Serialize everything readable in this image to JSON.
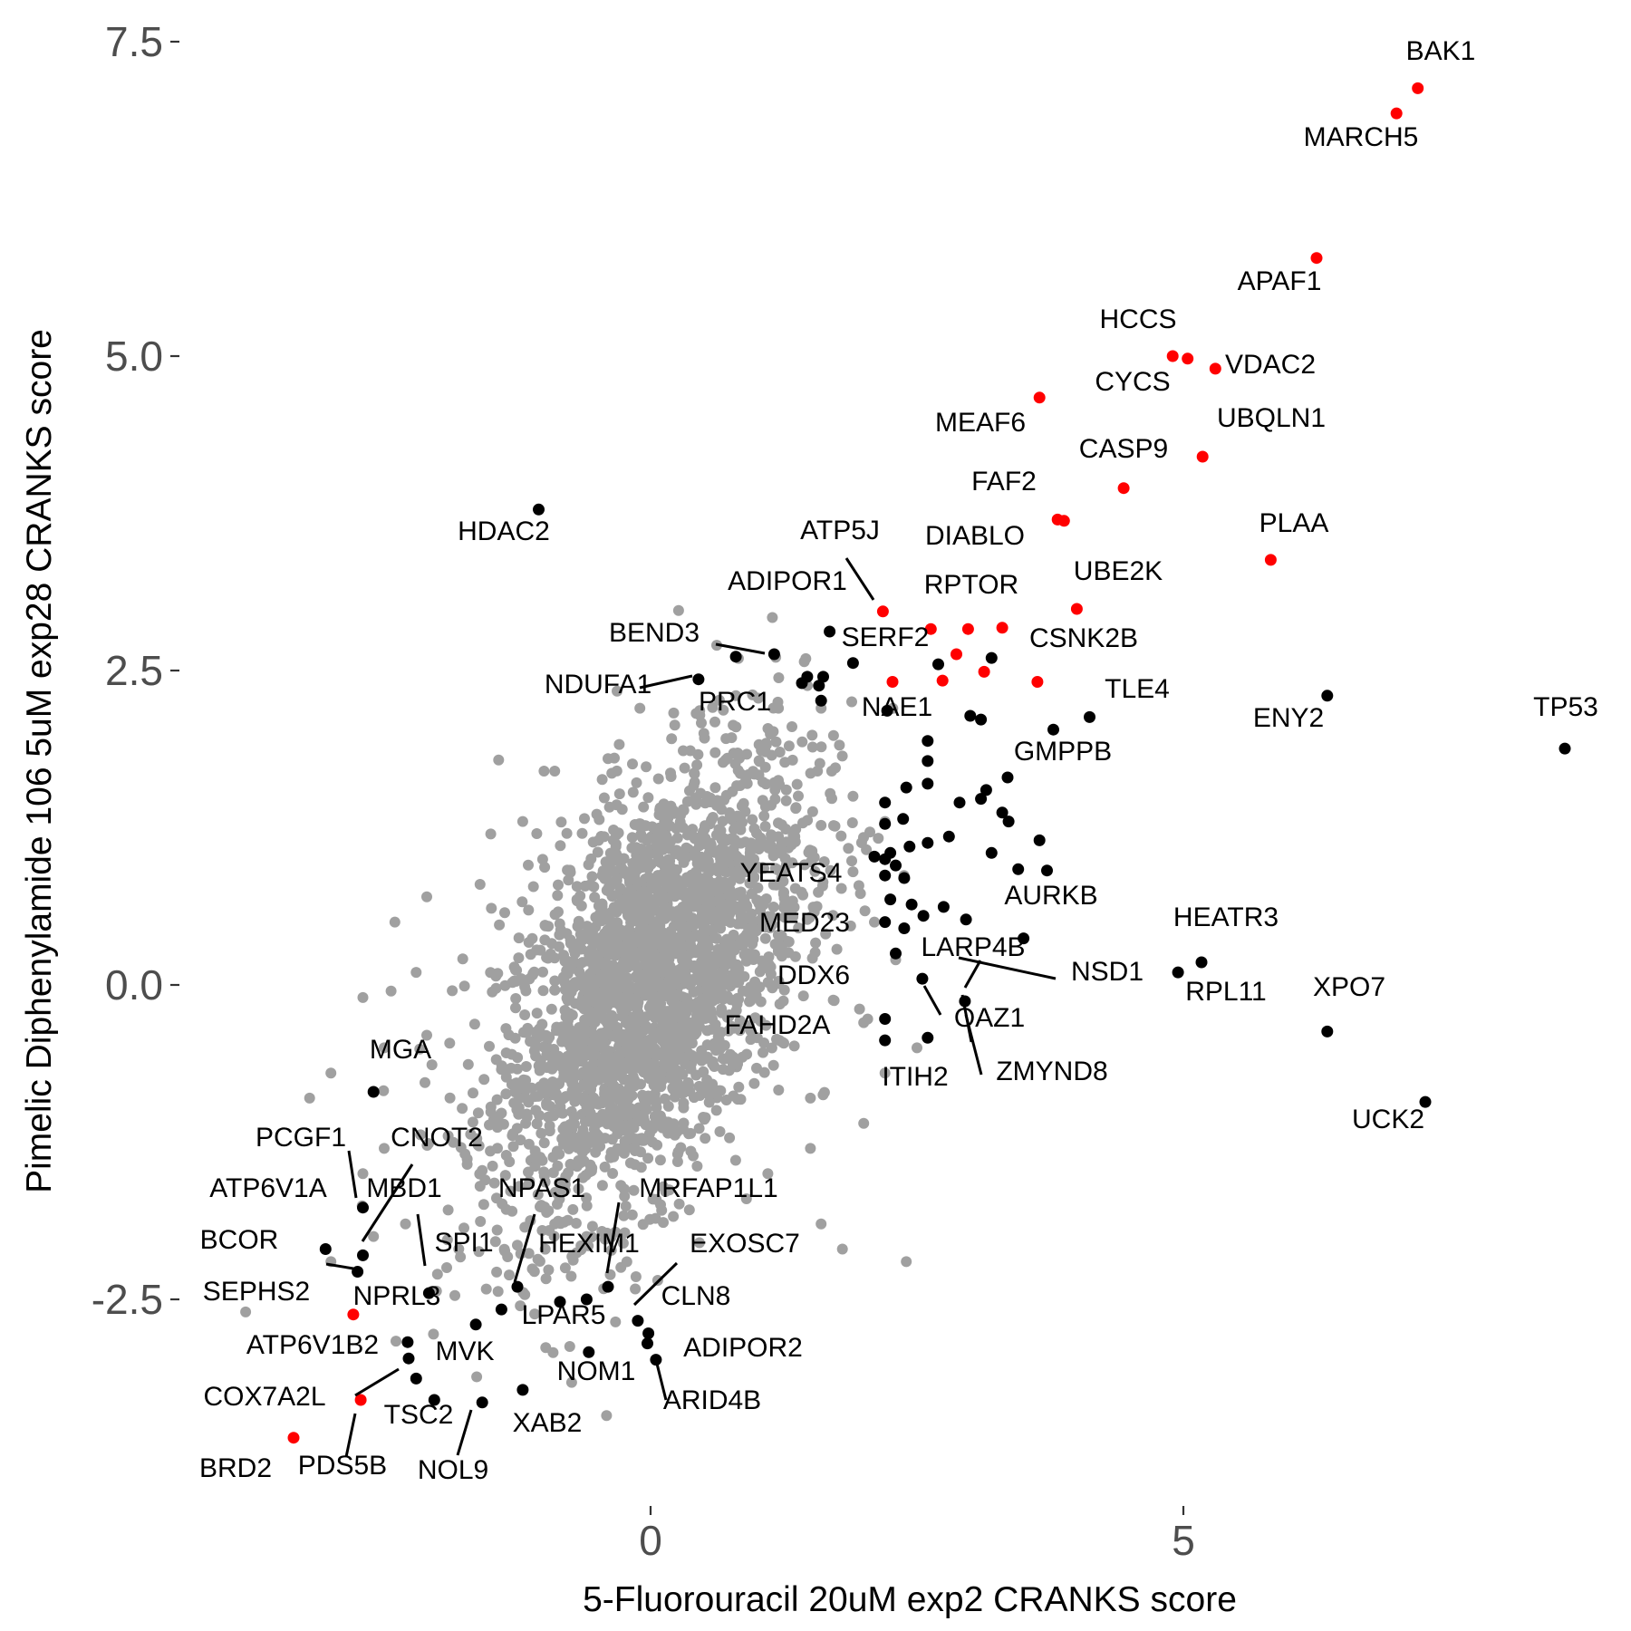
{
  "chart_data": {
    "type": "scatter",
    "title": "",
    "xlabel": "5-Fluorouracil 20uM exp2 CRANKS score",
    "ylabel": "Pimelic Diphenylamide 106 5uM exp28 CRANKS score",
    "xlim": [
      -4.2,
      8.9
    ],
    "ylim": [
      -4.1,
      7.7
    ],
    "grid": false,
    "legend": "none",
    "colors": {
      "background_genes": "#a0a0a0",
      "highlight": "#000000",
      "hit": "#ff0000"
    },
    "x_ticks": [
      {
        "value": 0,
        "label": "0"
      },
      {
        "value": 5,
        "label": "5"
      }
    ],
    "y_ticks": [
      {
        "value": -2.5,
        "label": "-2.5"
      },
      {
        "value": 0,
        "label": "0.0"
      },
      {
        "value": 2.5,
        "label": "2.5"
      },
      {
        "value": 5,
        "label": "5.0"
      },
      {
        "value": 7.5,
        "label": "7.5"
      }
    ],
    "background_cloud": {
      "description": "thousands of unlabeled genes, gray, concentrated around (0,0)",
      "extra_points": [
        [
          -3.0,
          -0.7
        ],
        [
          -2.7,
          -0.1
        ],
        [
          -2.7,
          -1.5
        ],
        [
          -2.3,
          -1.9
        ],
        [
          -2.1,
          0.7
        ],
        [
          -2.0,
          -2.3
        ],
        [
          -3.8,
          -2.6
        ],
        [
          -3.0,
          -2.2
        ],
        [
          -2.5,
          -1.3
        ],
        [
          -1.8,
          -2.1
        ],
        [
          2.4,
          -2.2
        ],
        [
          1.8,
          -2.1
        ],
        [
          2.0,
          -1.1
        ],
        [
          1.5,
          -1.3
        ],
        [
          1.7,
          1.7
        ],
        [
          1.6,
          2.2
        ],
        [
          1.2,
          2.2
        ],
        [
          0.8,
          2.3
        ],
        [
          -0.1,
          2.2
        ],
        [
          -0.4,
          1.8
        ],
        [
          -0.9,
          1.7
        ],
        [
          -1.0,
          1.7
        ],
        [
          -1.5,
          1.2
        ],
        [
          -1.6,
          0.8
        ],
        [
          1.9,
          1.5
        ],
        [
          2.2,
          1.3
        ],
        [
          2.1,
          0.5
        ],
        [
          2.0,
          -0.3
        ],
        [
          1.5,
          -0.9
        ],
        [
          -1.3,
          -1.8
        ],
        [
          -2.5,
          -0.5
        ],
        [
          -2.2,
          0.1
        ],
        [
          1.3,
          1.9
        ],
        [
          0.5,
          2.0
        ],
        [
          -0.6,
          -2.0
        ],
        [
          -0.9,
          -1.9
        ],
        [
          -1.6,
          -1.6
        ],
        [
          -2.4,
          0.5
        ],
        [
          -1.9,
          -1.2
        ],
        [
          1.9,
          0.9
        ],
        [
          0.9,
          -1.7
        ],
        [
          1.1,
          -1.5
        ],
        [
          -1.2,
          1.3
        ],
        [
          2.3,
          0.2
        ],
        [
          2.5,
          -0.5
        ],
        [
          2.2,
          -0.7
        ],
        [
          1.6,
          -1.9
        ],
        [
          -2.6,
          -2.0
        ],
        [
          -3.2,
          -0.9
        ],
        [
          -2.1,
          -0.4
        ]
      ]
    },
    "series": [
      {
        "name": "",
        "color": "#ff0000",
        "points": [
          {
            "label": "BAK1",
            "x": 7.2,
            "y": 7.13
          },
          {
            "label": "MARCH5",
            "x": 7.0,
            "y": 6.93
          },
          {
            "label": "APAF1",
            "x": 6.25,
            "y": 5.78
          },
          {
            "label": "HCCS",
            "x": 4.9,
            "y": 5.0
          },
          {
            "label": "CYCS",
            "x": 5.04,
            "y": 4.98
          },
          {
            "label": "VDAC2",
            "x": 5.3,
            "y": 4.9
          },
          {
            "label": "MEAF6",
            "x": 3.65,
            "y": 4.67
          },
          {
            "label": "UBQLN1",
            "x": 5.18,
            "y": 4.2
          },
          {
            "label": "CASP9",
            "x": 4.44,
            "y": 3.95
          },
          {
            "label": "FAF2",
            "x": 3.82,
            "y": 3.7
          },
          {
            "label": "DIABLO",
            "x": 3.88,
            "y": 3.69
          },
          {
            "label": "PLAA",
            "x": 5.82,
            "y": 3.38
          },
          {
            "label": "ADIPOR1",
            "x": 2.18,
            "y": 2.97
          },
          {
            "label": "UBE2K",
            "x": 4.0,
            "y": 2.99
          },
          {
            "label": "RPTOR",
            "x": 2.63,
            "y": 2.83
          },
          {
            "label": "",
            "x": 2.98,
            "y": 2.83
          },
          {
            "label": "",
            "x": 3.3,
            "y": 2.84
          },
          {
            "label": "",
            "x": 2.87,
            "y": 2.63
          },
          {
            "label": "CSNK2B",
            "x": 3.13,
            "y": 2.49
          },
          {
            "label": "",
            "x": 2.74,
            "y": 2.42
          },
          {
            "label": "",
            "x": 3.63,
            "y": 2.41
          },
          {
            "label": "",
            "x": 2.27,
            "y": 2.41
          },
          {
            "label": "NPRL3",
            "x": -2.79,
            "y": -2.62
          },
          {
            "label": "COX7A2L",
            "x": -2.72,
            "y": -3.3
          },
          {
            "label": "BRD2",
            "x": -3.35,
            "y": -3.6
          }
        ]
      },
      {
        "name": "",
        "color": "#000000",
        "points": [
          {
            "label": "HDAC2",
            "x": -1.05,
            "y": 3.78
          },
          {
            "label": "TP53",
            "x": 8.58,
            "y": 1.88
          },
          {
            "label": "ENY2",
            "x": 6.35,
            "y": 2.3
          },
          {
            "label": "TLE4",
            "x": 4.12,
            "y": 2.13
          },
          {
            "label": "GMPPB",
            "x": 3.78,
            "y": 2.03
          },
          {
            "label": "",
            "x": 3.1,
            "y": 2.11
          },
          {
            "label": "",
            "x": 3.0,
            "y": 2.14
          },
          {
            "label": "",
            "x": 3.2,
            "y": 2.6
          },
          {
            "label": "",
            "x": 2.7,
            "y": 2.55
          },
          {
            "label": "SERF2",
            "x": 1.68,
            "y": 2.81
          },
          {
            "label": "",
            "x": 1.9,
            "y": 2.56
          },
          {
            "label": "BEND3",
            "x": 1.16,
            "y": 2.63
          },
          {
            "label": "",
            "x": 0.8,
            "y": 2.61
          },
          {
            "label": "NDUFA1",
            "x": 0.45,
            "y": 2.43
          },
          {
            "label": "PRC1",
            "x": 1.47,
            "y": 2.45
          },
          {
            "label": "",
            "x": 1.62,
            "y": 2.45
          },
          {
            "label": "",
            "x": 1.42,
            "y": 2.4
          },
          {
            "label": "",
            "x": 1.58,
            "y": 2.38
          },
          {
            "label": "",
            "x": 1.6,
            "y": 2.26
          },
          {
            "label": "NAE1",
            "x": 2.22,
            "y": 2.18
          },
          {
            "label": "",
            "x": 2.6,
            "y": 1.94
          },
          {
            "label": "",
            "x": 2.6,
            "y": 1.78
          },
          {
            "label": "",
            "x": 2.6,
            "y": 1.6
          },
          {
            "label": "",
            "x": 3.35,
            "y": 1.65
          },
          {
            "label": "",
            "x": 3.15,
            "y": 1.55
          },
          {
            "label": "",
            "x": 2.4,
            "y": 1.57
          },
          {
            "label": "",
            "x": 3.1,
            "y": 1.48
          },
          {
            "label": "",
            "x": 2.9,
            "y": 1.45
          },
          {
            "label": "",
            "x": 2.2,
            "y": 1.45
          },
          {
            "label": "",
            "x": 3.3,
            "y": 1.37
          },
          {
            "label": "",
            "x": 3.36,
            "y": 1.3
          },
          {
            "label": "",
            "x": 2.37,
            "y": 1.32
          },
          {
            "label": "",
            "x": 2.2,
            "y": 1.28
          },
          {
            "label": "",
            "x": 2.8,
            "y": 1.18
          },
          {
            "label": "",
            "x": 3.65,
            "y": 1.15
          },
          {
            "label": "",
            "x": 2.6,
            "y": 1.13
          },
          {
            "label": "",
            "x": 2.43,
            "y": 1.1
          },
          {
            "label": "",
            "x": 2.25,
            "y": 1.05
          },
          {
            "label": "",
            "x": 3.2,
            "y": 1.05
          },
          {
            "label": "",
            "x": 2.1,
            "y": 1.02
          },
          {
            "label": "YEATS4",
            "x": 2.2,
            "y": 1.0
          },
          {
            "label": "",
            "x": 2.3,
            "y": 0.95
          },
          {
            "label": "",
            "x": 3.45,
            "y": 0.92
          },
          {
            "label": "",
            "x": 3.72,
            "y": 0.91
          },
          {
            "label": "",
            "x": 2.2,
            "y": 0.87
          },
          {
            "label": "",
            "x": 2.38,
            "y": 0.85
          },
          {
            "label": "",
            "x": 2.25,
            "y": 0.68
          },
          {
            "label": "",
            "x": 2.45,
            "y": 0.64
          },
          {
            "label": "",
            "x": 2.75,
            "y": 0.62
          },
          {
            "label": "MED23",
            "x": 2.2,
            "y": 0.5
          },
          {
            "label": "",
            "x": 2.38,
            "y": 0.45
          },
          {
            "label": "",
            "x": 2.56,
            "y": 0.55
          },
          {
            "label": "NSD1",
            "x": 2.96,
            "y": 0.52
          },
          {
            "label": "AURKB",
            "x": 3.5,
            "y": 0.37
          },
          {
            "label": "LARP4B",
            "x": 2.3,
            "y": 0.25
          },
          {
            "label": "HEATR3",
            "x": 5.17,
            "y": 0.18
          },
          {
            "label": "RPL11",
            "x": 4.95,
            "y": 0.1
          },
          {
            "label": "DDX6",
            "x": 2.55,
            "y": 0.05
          },
          {
            "label": "OAZ1",
            "x": 2.95,
            "y": -0.13
          },
          {
            "label": "XPO7",
            "x": 6.35,
            "y": -0.37
          },
          {
            "label": "",
            "x": 2.2,
            "y": -0.27
          },
          {
            "label": "FAHD2A",
            "x": 2.2,
            "y": -0.44
          },
          {
            "label": "ITIH2",
            "x": 2.6,
            "y": -0.42
          },
          {
            "label": "UCK2",
            "x": 7.27,
            "y": -0.93
          },
          {
            "label": "MGA",
            "x": -2.6,
            "y": -0.85
          },
          {
            "label": "PCGF1",
            "x": -2.7,
            "y": -1.77
          },
          {
            "label": "ATP6V1A",
            "x": -3.05,
            "y": -2.1
          },
          {
            "label": "CNOT2",
            "x": -2.7,
            "y": -2.15
          },
          {
            "label": "BCOR",
            "x": -2.75,
            "y": -2.28
          },
          {
            "label": "MBD1",
            "x": -2.08,
            "y": -2.45
          },
          {
            "label": "NPAS1",
            "x": -1.25,
            "y": -2.4
          },
          {
            "label": "",
            "x": -1.4,
            "y": -2.58
          },
          {
            "label": "",
            "x": -1.64,
            "y": -2.7
          },
          {
            "label": "",
            "x": -0.85,
            "y": -2.52
          },
          {
            "label": "",
            "x": -0.6,
            "y": -2.5
          },
          {
            "label": "HEXIM1",
            "x": -0.4,
            "y": -2.4
          },
          {
            "label": "EXOSC7",
            "x": -0.12,
            "y": -2.67
          },
          {
            "label": "LPAR5",
            "x": -0.58,
            "y": -2.92
          },
          {
            "label": "CLN8",
            "x": -0.02,
            "y": -2.77
          },
          {
            "label": "",
            "x": -0.03,
            "y": -2.85
          },
          {
            "label": "ADIPOR2",
            "x": 0.05,
            "y": -2.98
          },
          {
            "label": "ATP6V1B2",
            "x": -2.28,
            "y": -2.84
          },
          {
            "label": "",
            "x": -2.27,
            "y": -2.97
          },
          {
            "label": "MVK",
            "x": -2.2,
            "y": -3.13
          },
          {
            "label": "TSC2",
            "x": -2.03,
            "y": -3.3
          },
          {
            "label": "NOL9",
            "x": -1.58,
            "y": -3.32
          },
          {
            "label": "XAB2",
            "x": -1.2,
            "y": -3.22
          }
        ]
      }
    ],
    "annotations": [
      "BAK1",
      "MARCH5",
      "APAF1",
      "HCCS",
      "CYCS",
      "VDAC2",
      "MEAF6",
      "UBQLN1",
      "CASP9",
      "FAF2",
      "DIABLO",
      "PLAA",
      "HDAC2",
      "ATP5J",
      "ADIPOR1",
      "UBE2K",
      "RPTOR",
      "BEND3",
      "SERF2",
      "CSNK2B",
      "NDUFA1",
      "PRC1",
      "NAE1",
      "TLE4",
      "TP53",
      "ENY2",
      "GMPPB",
      "YEATS4",
      "AURKB",
      "MED23",
      "HEATR3",
      "LARP4B",
      "NSD1",
      "DDX6",
      "RPL11",
      "XPO7",
      "OAZ1",
      "FAHD2A",
      "ZMYND8",
      "ITIH2",
      "UCK2",
      "MGA",
      "PCGF1",
      "CNOT2",
      "ATP6V1A",
      "MBD1",
      "NPAS1",
      "MRFAP1L1",
      "BCOR",
      "SPI1",
      "HEXIM1",
      "EXOSC7",
      "SEPHS2",
      "NPRL3",
      "CLN8",
      "LPAR5",
      "ATP6V1B2",
      "MVK",
      "ADIPOR2",
      "NOM1",
      "COX7A2L",
      "ARID4B",
      "TSC2",
      "XAB2",
      "BRD2",
      "PDS5B",
      "NOL9"
    ]
  }
}
